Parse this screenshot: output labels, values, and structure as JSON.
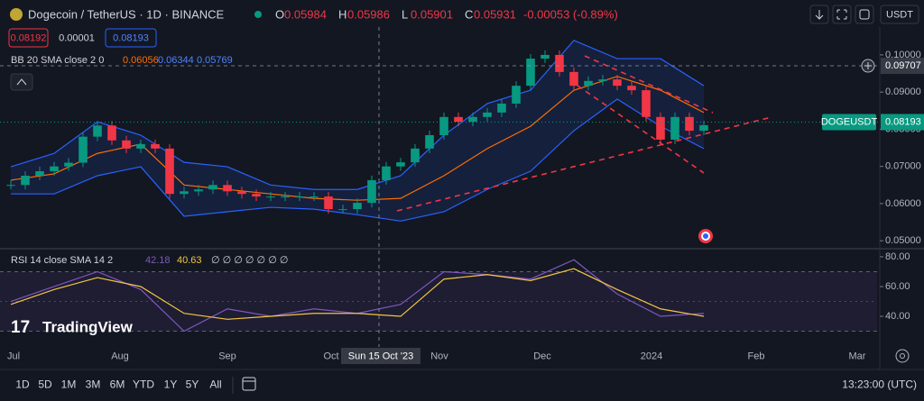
{
  "header": {
    "symbol": "Dogecoin / TetherUS · 1D · BINANCE",
    "ohlc": [
      [
        "O",
        "0.05984"
      ],
      [
        "H",
        "0.05986"
      ],
      [
        "L",
        "0.05901"
      ],
      [
        "C",
        "0.05931"
      ]
    ],
    "change": "-0.00053 (-0.89%)",
    "bid": "0.08192",
    "spread": "0.00001",
    "ask": "0.08193",
    "currency": "USDT"
  },
  "bb_legend": {
    "label": "BB 20 SMA close 2 0",
    "basis": "0.06056",
    "upper": "0.06344",
    "lower": "0.05769"
  },
  "rsi_legend": {
    "label": "RSI 14 close SMA 14 2",
    "rsi": "42.18",
    "sma": "40.63",
    "rest": "∅ ∅ ∅ ∅ ∅ ∅ ∅"
  },
  "price_chart": {
    "type": "candlestick",
    "ylim": [
      0.0481,
      0.1075
    ],
    "yticks": [
      {
        "value": 0.1,
        "label": "0.10000"
      },
      {
        "value": 0.09,
        "label": "0.09000"
      },
      {
        "value": 0.08,
        "label": "0.08000"
      },
      {
        "value": 0.07,
        "label": "0.07000"
      },
      {
        "value": 0.06,
        "label": "0.06000"
      },
      {
        "value": 0.05,
        "label": "0.05000"
      }
    ],
    "closes": [
      0.065,
      0.0675,
      0.0687,
      0.07,
      0.071,
      0.078,
      0.081,
      0.077,
      0.0748,
      0.076,
      0.0748,
      0.0626,
      0.0633,
      0.0638,
      0.065,
      0.0633,
      0.0626,
      0.0619,
      0.0619,
      0.0619,
      0.0619,
      0.0619,
      0.0585,
      0.0585,
      0.0602,
      0.0663,
      0.07,
      0.0711,
      0.0748,
      0.0784,
      0.0833,
      0.082,
      0.0833,
      0.0845,
      0.0869,
      0.0917,
      0.099,
      0.1,
      0.0954,
      0.0917,
      0.093,
      0.0934,
      0.0917,
      0.0905,
      0.0833,
      0.0772,
      0.0833,
      0.0796,
      0.0811
    ],
    "up_color": "#089981",
    "down_color": "#f23645",
    "bb_upper": [
      0.0699,
      0.0735,
      0.082,
      0.0784,
      0.0711,
      0.0699,
      0.065,
      0.0638,
      0.0638,
      0.0675,
      0.0784,
      0.0869,
      0.0905,
      0.1039,
      0.099,
      0.099,
      0.0917
    ],
    "bb_basis": [
      0.0663,
      0.068,
      0.0735,
      0.076,
      0.065,
      0.0638,
      0.0626,
      0.0614,
      0.0609,
      0.0614,
      0.0675,
      0.0748,
      0.0808,
      0.0905,
      0.0942,
      0.0905,
      0.0845
    ],
    "bb_lower": [
      0.0626,
      0.0626,
      0.0675,
      0.0699,
      0.0566,
      0.0578,
      0.059,
      0.0585,
      0.057,
      0.0553,
      0.0578,
      0.0638,
      0.0687,
      0.0796,
      0.0881,
      0.0808,
      0.0748
    ],
    "band_color": "#2962ff",
    "basis_color": "#ff6d00",
    "crosshair": {
      "value": 0.09707,
      "label": "0.09707"
    },
    "last": {
      "value": 0.08193,
      "label": "0.08193",
      "symbol": "DOGEUSDT"
    }
  },
  "rsi_chart": {
    "type": "line",
    "ylim": [
      27.3,
      83
    ],
    "yticks": [
      {
        "value": 80,
        "label": "80.00"
      },
      {
        "value": 60,
        "label": "60.00"
      },
      {
        "value": 40,
        "label": "40.00"
      }
    ],
    "series": [
      {
        "name": "RSI",
        "color": "#7e57c2",
        "values": [
          50,
          60,
          70,
          58,
          30,
          45,
          40,
          45,
          42,
          48,
          70,
          68,
          65,
          78,
          55,
          40,
          42
        ]
      },
      {
        "name": "SMA",
        "color": "#f5c542",
        "values": [
          48,
          58,
          66,
          60,
          42,
          38,
          40,
          42,
          42,
          40,
          65,
          68,
          64,
          72,
          58,
          45,
          40
        ]
      }
    ]
  },
  "time_axis": [
    "Jul",
    "Aug",
    "Sep",
    "Oct",
    "Nov",
    "Dec",
    "2024",
    "Feb",
    "Mar"
  ],
  "cursor_date": "Sun 15 Oct '23",
  "logo": "TradingView",
  "toolbar": {
    "ranges": [
      "1D",
      "5D",
      "1M",
      "3M",
      "6M",
      "YTD",
      "1Y",
      "5Y",
      "All"
    ],
    "clock": "13:23:00 (UTC)"
  }
}
